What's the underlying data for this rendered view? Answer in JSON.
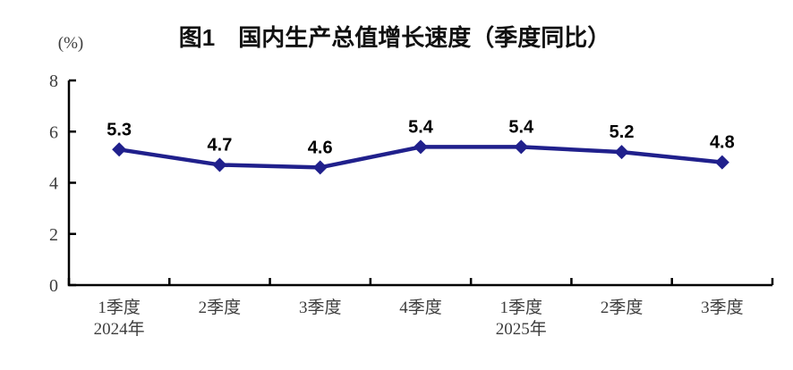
{
  "chart_data": {
    "type": "line",
    "title": "图1　国内生产总值增长速度（季度同比）",
    "unit_label": "(%)",
    "categories": [
      "1季度",
      "2季度",
      "3季度",
      "4季度",
      "1季度",
      "2季度",
      "3季度"
    ],
    "category_sublabels": [
      "2024年",
      "",
      "",
      "",
      "2025年",
      "",
      ""
    ],
    "values": [
      5.3,
      4.7,
      4.6,
      5.4,
      5.4,
      5.2,
      4.8
    ],
    "data_labels": [
      "5.3",
      "4.7",
      "4.6",
      "5.4",
      "5.4",
      "5.2",
      "4.8"
    ],
    "ylim": [
      0,
      8
    ],
    "y_ticks": [
      0,
      2,
      4,
      6,
      8
    ],
    "xlabel": "",
    "ylabel": "(%)",
    "grid": false,
    "legend": false,
    "marker": "diamond",
    "colors": {
      "line": "#20208c",
      "marker": "#20208c",
      "axis": "#000000",
      "tick_label": "#3d3d3d",
      "data_label": "#000000",
      "title": "#111111",
      "background": "#ffffff"
    }
  }
}
